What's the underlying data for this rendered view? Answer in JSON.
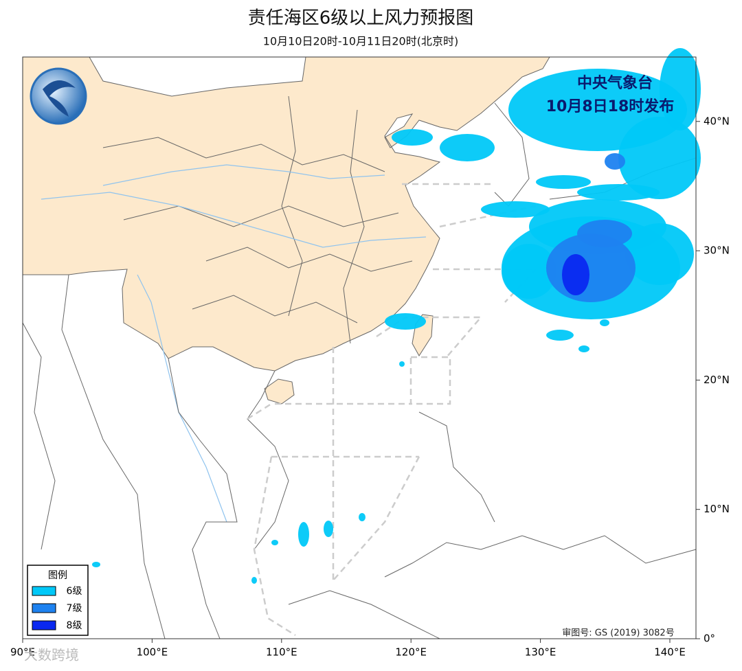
{
  "header": {
    "title": "责任海区6级以上风力预报图",
    "subtitle": "10月10日20时-10月11日20时(北京时)"
  },
  "issuer": {
    "name": "中央气象台",
    "time": "10月8日18时发布"
  },
  "legend": {
    "title": "图例",
    "items": [
      {
        "label": "6级",
        "color": "#00c8f8"
      },
      {
        "label": "7级",
        "color": "#1e82f0"
      },
      {
        "label": "8级",
        "color": "#0a28f0"
      }
    ]
  },
  "axes": {
    "x_ticks": [
      "90°E",
      "100°E",
      "110°E",
      "120°E",
      "130°E",
      "140°E"
    ],
    "y_ticks": [
      "0°",
      "10°N",
      "20°N",
      "30°N",
      "40°N"
    ]
  },
  "approval": "审图号: GS (2019) 3082号",
  "watermark": "大数跨境"
}
